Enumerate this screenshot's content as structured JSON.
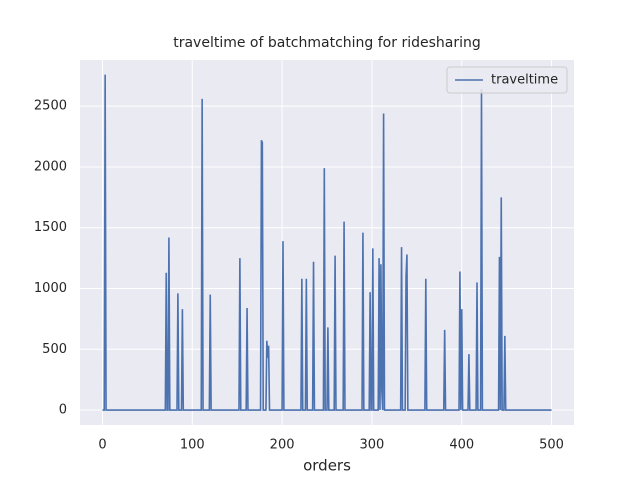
{
  "chart_data": {
    "type": "line",
    "title": "traveltime of batchmatching for ridesharing",
    "xlabel": "orders",
    "x": [
      0,
      2,
      3,
      4,
      70,
      71,
      72,
      73,
      74,
      75,
      83,
      84,
      85,
      88,
      89,
      90,
      110,
      111,
      112,
      119,
      120,
      121,
      152,
      153,
      154,
      160,
      161,
      162,
      176,
      177,
      178,
      179,
      182,
      183,
      184,
      185,
      186,
      200,
      201,
      202,
      221,
      222,
      223,
      226,
      227,
      228,
      234,
      235,
      236,
      246,
      247,
      248,
      250,
      251,
      252,
      258,
      259,
      260,
      268,
      269,
      270,
      289,
      290,
      291,
      297,
      298,
      299,
      300,
      301,
      302,
      307,
      308,
      309,
      310,
      311,
      312,
      313,
      314,
      332,
      333,
      334,
      337,
      338,
      339,
      340,
      359,
      360,
      361,
      380,
      381,
      382,
      397,
      398,
      399,
      400,
      401,
      407,
      408,
      409,
      416,
      417,
      418,
      421,
      422,
      423,
      441,
      442,
      443,
      444,
      445,
      447,
      448,
      449,
      500
    ],
    "series": [
      {
        "name": "traveltime",
        "color": "#4c72b0",
        "values": [
          0,
          0,
          2760,
          0,
          0,
          1130,
          0,
          0,
          1420,
          0,
          0,
          960,
          0,
          0,
          830,
          0,
          0,
          2560,
          0,
          0,
          950,
          0,
          0,
          1250,
          0,
          0,
          840,
          0,
          0,
          2220,
          2200,
          0,
          0,
          570,
          430,
          530,
          0,
          0,
          1390,
          0,
          0,
          1080,
          0,
          0,
          1080,
          0,
          0,
          1220,
          0,
          0,
          1990,
          0,
          0,
          680,
          0,
          0,
          1270,
          0,
          0,
          1550,
          0,
          0,
          1460,
          0,
          0,
          970,
          0,
          0,
          1330,
          0,
          0,
          1250,
          0,
          1200,
          170,
          0,
          2440,
          0,
          0,
          1340,
          0,
          0,
          1100,
          1280,
          0,
          0,
          1080,
          0,
          0,
          660,
          0,
          0,
          1140,
          0,
          830,
          0,
          0,
          460,
          0,
          0,
          1050,
          0,
          0,
          2640,
          0,
          0,
          1260,
          0,
          1750,
          0,
          0,
          610,
          0,
          0
        ]
      }
    ],
    "xlim": [
      -25,
      525
    ],
    "ylim": [
      -123,
      2880
    ],
    "xticks": [
      0,
      100,
      200,
      300,
      400,
      500
    ],
    "yticks": [
      0,
      500,
      1000,
      1500,
      2000,
      2500
    ],
    "grid": true,
    "legend": "upper right"
  }
}
